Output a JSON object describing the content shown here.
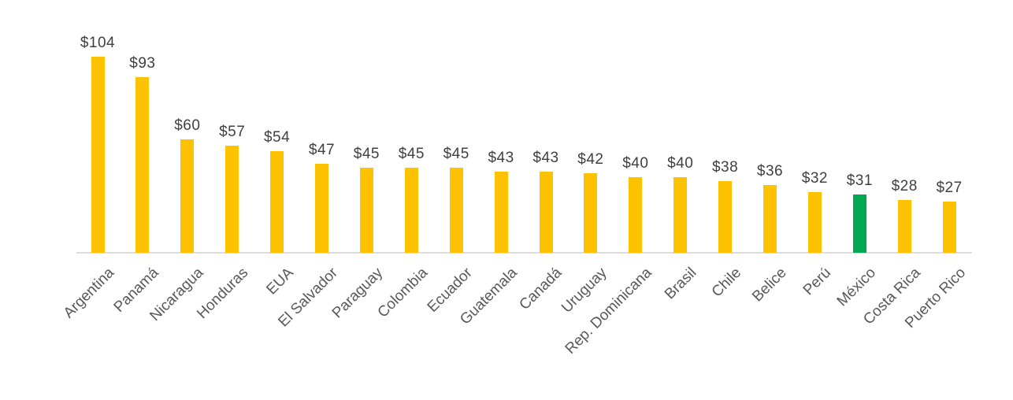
{
  "chart_data": {
    "type": "bar",
    "title": "",
    "xlabel": "",
    "ylabel": "",
    "categories": [
      "Argentina",
      "Panamá",
      "Nicaragua",
      "Honduras",
      "EUA",
      "El Salvador",
      "Paraguay",
      "Colombia",
      "Ecuador",
      "Guatemala",
      "Canadá",
      "Uruguay",
      "Rep. Dominicana",
      "Brasil",
      "Chile",
      "Belice",
      "Perú",
      "México",
      "Costa Rica",
      "Puerto Rico"
    ],
    "values": [
      104,
      93,
      60,
      57,
      54,
      47,
      45,
      45,
      45,
      43,
      43,
      42,
      40,
      40,
      38,
      36,
      32,
      31,
      28,
      27
    ],
    "data_labels": [
      "$104",
      "$93",
      "$60",
      "$57",
      "$54",
      "$47",
      "$45",
      "$45",
      "$45",
      "$43",
      "$43",
      "$42",
      "$40",
      "$40",
      "$38",
      "$36",
      "$32",
      "$31",
      "$28",
      "$27"
    ],
    "highlight_category": "México",
    "bar_color_default": "#FFC200",
    "bar_color_highlight": "#00A950",
    "axis_line_color": "#DCDCDC",
    "value_label_color": "#404040",
    "tick_label_color": "#595959",
    "ylim": [
      0,
      104
    ],
    "grid": false,
    "legend": false,
    "data_label_position": "outside-end",
    "tick_label_rotation_deg": 45
  }
}
